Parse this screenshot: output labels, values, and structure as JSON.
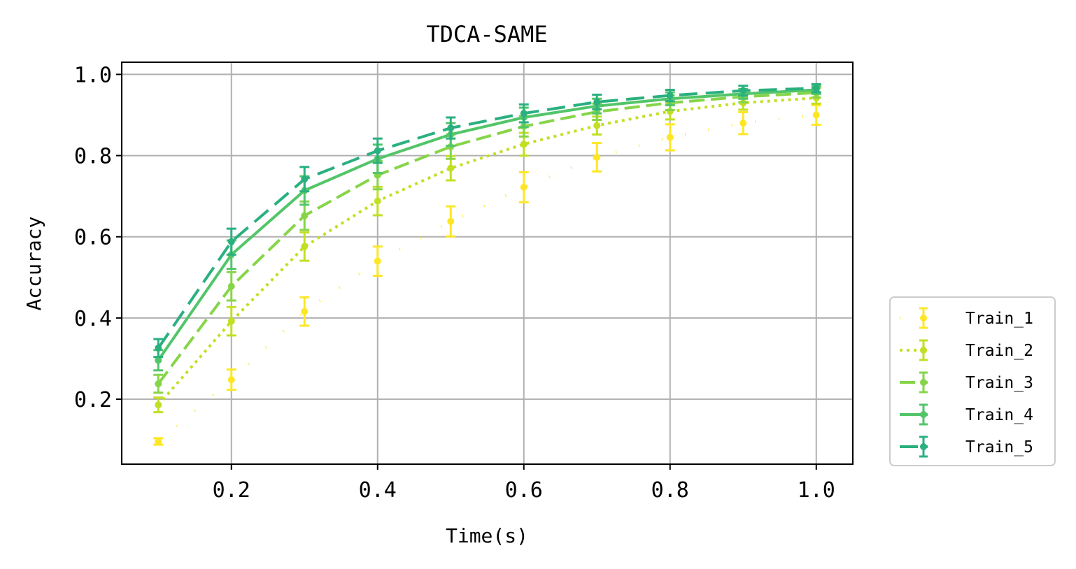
{
  "chart_data": {
    "type": "line",
    "title": "TDCA-SAME",
    "xlabel": "Time(s)",
    "ylabel": "Accuracy",
    "xlim": [
      0.05,
      1.05
    ],
    "ylim": [
      0.04,
      1.03
    ],
    "grid": true,
    "legend_placement": "outside lower-right",
    "x_ticks": [
      0.2,
      0.4,
      0.6,
      0.8,
      1.0
    ],
    "x_tick_labels": [
      "0.2",
      "0.4",
      "0.6",
      "0.8",
      "1.0"
    ],
    "y_ticks": [
      0.2,
      0.4,
      0.6,
      0.8,
      1.0
    ],
    "y_tick_labels": [
      "0.2",
      "0.4",
      "0.6",
      "0.8",
      "1.0"
    ],
    "x": [
      0.1,
      0.2,
      0.3,
      0.4,
      0.5,
      0.6,
      0.7,
      0.8,
      0.9,
      1.0
    ],
    "series": [
      {
        "name": "Train_1",
        "color": "#fde725",
        "dash": "1 33",
        "values": [
          0.096,
          0.248,
          0.416,
          0.54,
          0.638,
          0.722,
          0.796,
          0.845,
          0.88,
          0.9
        ],
        "errors": [
          0.008,
          0.025,
          0.035,
          0.036,
          0.037,
          0.037,
          0.035,
          0.032,
          0.027,
          0.024
        ]
      },
      {
        "name": "Train_2",
        "color": "#c2df23",
        "dash": "4 6",
        "values": [
          0.186,
          0.392,
          0.576,
          0.688,
          0.769,
          0.828,
          0.874,
          0.909,
          0.93,
          0.942
        ],
        "errors": [
          0.018,
          0.035,
          0.035,
          0.035,
          0.03,
          0.028,
          0.022,
          0.02,
          0.017,
          0.014
        ]
      },
      {
        "name": "Train_3",
        "color": "#86d549",
        "dash": "22 9",
        "values": [
          0.238,
          0.478,
          0.652,
          0.752,
          0.822,
          0.872,
          0.908,
          0.93,
          0.945,
          0.955
        ],
        "errors": [
          0.022,
          0.035,
          0.035,
          0.035,
          0.03,
          0.025,
          0.02,
          0.018,
          0.014,
          0.012
        ]
      },
      {
        "name": "Train_4",
        "color": "#52c569",
        "dash": "",
        "values": [
          0.296,
          0.556,
          0.714,
          0.792,
          0.852,
          0.894,
          0.922,
          0.94,
          0.952,
          0.962
        ],
        "errors": [
          0.025,
          0.035,
          0.035,
          0.035,
          0.028,
          0.024,
          0.018,
          0.016,
          0.012,
          0.01
        ]
      },
      {
        "name": "Train_5",
        "color": "#2ab07f",
        "dash": "26 12",
        "values": [
          0.326,
          0.588,
          0.742,
          0.812,
          0.868,
          0.904,
          0.932,
          0.948,
          0.96,
          0.966
        ],
        "errors": [
          0.022,
          0.032,
          0.03,
          0.03,
          0.026,
          0.022,
          0.018,
          0.014,
          0.012,
          0.01
        ]
      }
    ]
  }
}
